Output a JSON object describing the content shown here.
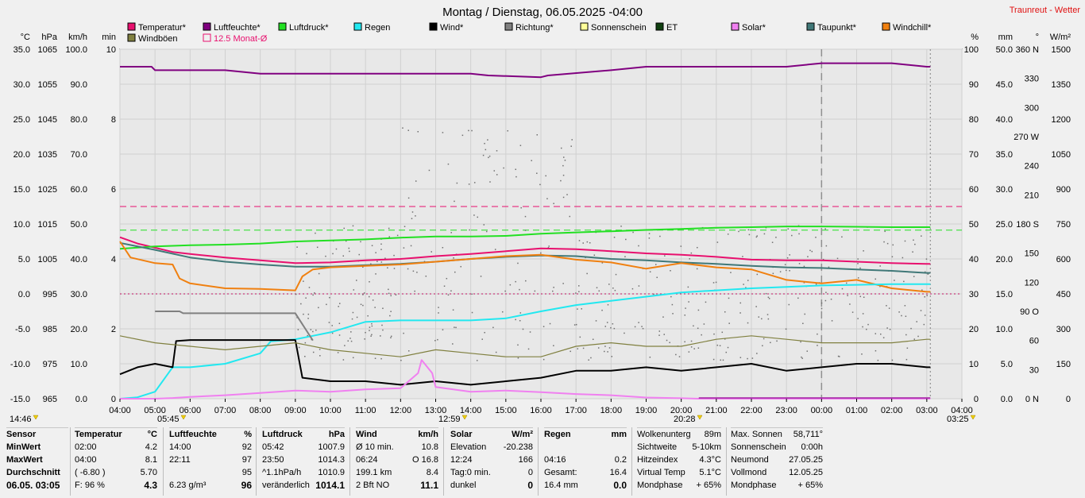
{
  "chart_data": {
    "type": "line",
    "title": "Montag / Dienstag, 06.05.2025  -04:00",
    "brand": "Traunreut - Wetter",
    "x_ticks": [
      "04:00",
      "05:00",
      "06:00",
      "07:00",
      "08:00",
      "09:00",
      "10:00",
      "11:00",
      "12:00",
      "13:00",
      "14:00",
      "15:00",
      "16:00",
      "17:00",
      "18:00",
      "19:00",
      "20:00",
      "21:00",
      "22:00",
      "23:00",
      "00:00",
      "01:00",
      "02:00",
      "03:00",
      "04:00"
    ],
    "xlim_hours": [
      0,
      24
    ],
    "below_axis_markers": [
      {
        "label": "14:46"
      },
      {
        "label": "05:45"
      },
      {
        "label": "12:59"
      },
      {
        "label": "20:28"
      },
      {
        "label": "03:25"
      }
    ],
    "axes": {
      "temperature": {
        "unit": "°C",
        "ticks": [
          "35.0",
          "30.0",
          "25.0",
          "20.0",
          "15.0",
          "10.0",
          "5.0",
          "0.0",
          "-5.0",
          "-10.0",
          "-15.0"
        ],
        "range": [
          -15,
          35
        ]
      },
      "pressure": {
        "unit": "hPa",
        "ticks": [
          "1065",
          "1055",
          "1045",
          "1035",
          "1025",
          "1015",
          "1005",
          "995",
          "985",
          "975",
          "965"
        ],
        "range": [
          965,
          1065
        ]
      },
      "wind": {
        "unit": "km/h",
        "ticks": [
          "100.0",
          "90.0",
          "80.0",
          "70.0",
          "60.0",
          "50.0",
          "40.0",
          "30.0",
          "20.0",
          "10.0",
          "0.0"
        ],
        "range": [
          0,
          100
        ]
      },
      "sunshine": {
        "unit": "min",
        "ticks": [
          "10",
          "8",
          "6",
          "4",
          "2",
          "0"
        ],
        "range": [
          0,
          10
        ]
      },
      "humidity": {
        "unit": "%",
        "ticks": [
          "100",
          "90",
          "80",
          "70",
          "60",
          "50",
          "40",
          "30",
          "20",
          "10",
          "0"
        ],
        "range": [
          0,
          100
        ]
      },
      "rain": {
        "unit": "mm",
        "ticks": [
          "50.0",
          "45.0",
          "40.0",
          "35.0",
          "30.0",
          "25.0",
          "20.0",
          "15.0",
          "10.0",
          "5.0",
          "0.0"
        ],
        "range": [
          0,
          50
        ]
      },
      "direction": {
        "unit": "°",
        "ticks": [
          "360 N",
          "330",
          "300",
          "270 W",
          "240",
          "210",
          "180 S",
          "150",
          "120",
          "90  O",
          "60",
          "30",
          "0    N"
        ],
        "range": [
          0,
          360
        ]
      },
      "solar": {
        "unit": "W/m²",
        "ticks": [
          "1500",
          "1350",
          "1200",
          "1050",
          "900",
          "750",
          "600",
          "450",
          "300",
          "150",
          "0"
        ],
        "range": [
          0,
          1500
        ]
      }
    },
    "legend": [
      {
        "name": "Temperatur*",
        "color": "#e8106e"
      },
      {
        "name": "Luftfeuchte*",
        "color": "#800080"
      },
      {
        "name": "Luftdruck*",
        "color": "#22e022"
      },
      {
        "name": "Regen",
        "color": "#22e8f0"
      },
      {
        "name": "Wind*",
        "color": "#000000"
      },
      {
        "name": "Richtung*",
        "color": "#808080"
      },
      {
        "name": "Sonnenschein",
        "color": "#ffff99"
      },
      {
        "name": "ET",
        "color": "#104010"
      },
      {
        "name": "Solar*",
        "color": "#f080f0"
      },
      {
        "name": "Taupunkt*",
        "color": "#407878"
      },
      {
        "name": "Windchill*",
        "color": "#f08010"
      },
      {
        "name": "Windböen",
        "color": "#808040"
      },
      {
        "name": "12.5 Monat-Ø",
        "color": "#e8106e",
        "hollow": true
      }
    ],
    "series": [
      {
        "name": "Temperatur*",
        "axis": "temperature",
        "color": "#e8106e",
        "x": [
          0,
          0.5,
          1,
          1.5,
          2,
          3,
          4,
          5,
          6,
          7,
          8,
          9,
          10,
          11,
          12,
          13,
          14,
          15,
          16,
          17,
          18,
          19,
          20,
          21,
          22,
          23,
          23.1
        ],
        "y": [
          8.1,
          7.2,
          6.6,
          6.0,
          5.7,
          5.2,
          4.8,
          4.4,
          4.5,
          4.8,
          5.0,
          5.4,
          5.7,
          6.1,
          6.5,
          6.4,
          6.1,
          5.8,
          5.6,
          5.3,
          4.9,
          4.8,
          4.8,
          4.6,
          4.4,
          4.3,
          4.3
        ]
      },
      {
        "name": "Luftfeuchte*",
        "axis": "humidity",
        "color": "#800080",
        "x": [
          0,
          0.9,
          1,
          3,
          4,
          8,
          9,
          10,
          10.5,
          12,
          12.2,
          14,
          15,
          16,
          17,
          18,
          19,
          20,
          21,
          22,
          23,
          23.1
        ],
        "y": [
          95,
          95,
          94,
          94,
          93,
          93,
          93,
          93,
          92.5,
          92,
          92.5,
          94,
          95,
          95,
          95,
          95,
          95,
          96,
          96,
          96,
          95,
          95
        ]
      },
      {
        "name": "Luftdruck*",
        "axis": "pressure",
        "color": "#22e022",
        "x": [
          0,
          1,
          2,
          3,
          4,
          5,
          6,
          7,
          8,
          9,
          10,
          11,
          12,
          13,
          14,
          15,
          16,
          17,
          18,
          19,
          20,
          21,
          22,
          23,
          23.1
        ],
        "y": [
          1007.9,
          1008.6,
          1008.9,
          1009.1,
          1009.4,
          1010.0,
          1010.3,
          1010.6,
          1011.1,
          1011.4,
          1011.4,
          1011.6,
          1012.2,
          1012.6,
          1012.9,
          1013.3,
          1013.6,
          1013.9,
          1014.1,
          1014.3,
          1014.3,
          1014.2,
          1014.1,
          1014.1,
          1014.1
        ]
      },
      {
        "name": "Taupunkt*",
        "axis": "temperature",
        "color": "#407878",
        "x": [
          0,
          1,
          2,
          3,
          4,
          5,
          6,
          7,
          8,
          9,
          10,
          11,
          12,
          13,
          14,
          15,
          16,
          17,
          18,
          19,
          20,
          21,
          22,
          23,
          23.1
        ],
        "y": [
          7.3,
          6.3,
          5.2,
          4.6,
          4.2,
          3.9,
          3.9,
          4.1,
          4.3,
          4.6,
          5.0,
          5.3,
          5.5,
          5.4,
          5.0,
          4.8,
          4.5,
          4.3,
          4.0,
          3.8,
          3.7,
          3.5,
          3.3,
          3.0,
          3.0
        ]
      },
      {
        "name": "Windchill*",
        "axis": "temperature",
        "color": "#f08010",
        "x": [
          0,
          0.3,
          1,
          1.5,
          1.7,
          2,
          3,
          4,
          5,
          5.2,
          5.5,
          6,
          7,
          8,
          9,
          10,
          11,
          12,
          13,
          14,
          15,
          16,
          17,
          18,
          19,
          20,
          21,
          22,
          23,
          23.1
        ],
        "y": [
          7.5,
          5.2,
          4.4,
          4.2,
          2.2,
          1.5,
          0.8,
          0.7,
          0.5,
          2.5,
          3.5,
          3.8,
          4.0,
          4.2,
          4.6,
          5.0,
          5.4,
          5.6,
          4.9,
          4.5,
          3.6,
          4.4,
          3.8,
          3.5,
          2.0,
          1.5,
          2.0,
          0.8,
          0.3,
          0.3
        ]
      },
      {
        "name": "Regen",
        "axis": "rain",
        "color": "#22e8f0",
        "x": [
          0,
          0.5,
          1,
          1.5,
          2,
          3,
          4,
          4.3,
          5,
          5.5,
          6,
          7,
          8,
          9,
          10,
          11,
          12,
          13,
          14,
          15,
          16,
          17,
          18,
          19,
          20,
          21,
          22,
          23,
          23.1
        ],
        "y": [
          0,
          0.2,
          1.0,
          4.5,
          4.5,
          5.0,
          6.5,
          8.2,
          8.5,
          9.0,
          9.5,
          11.0,
          11.2,
          11.2,
          11.2,
          11.5,
          12.5,
          13.4,
          14.0,
          14.6,
          15.2,
          15.5,
          15.8,
          16.0,
          16.2,
          16.3,
          16.4,
          16.4,
          16.4
        ]
      },
      {
        "name": "Wind*",
        "axis": "wind",
        "color": "#000000",
        "x": [
          0,
          0.5,
          1,
          1.5,
          1.6,
          2,
          3,
          4,
          5,
          5.2,
          6,
          7,
          8,
          9,
          10,
          11,
          12,
          13,
          14,
          15,
          16,
          17,
          18,
          19,
          20,
          21,
          22,
          23,
          23.1
        ],
        "y": [
          7,
          9,
          10,
          9,
          16.5,
          16.8,
          16.8,
          16.8,
          16.8,
          6,
          5,
          5,
          4,
          5,
          4,
          5,
          6,
          8,
          8,
          9,
          8,
          9,
          10,
          8,
          9,
          10,
          10,
          9,
          9
        ]
      },
      {
        "name": "Windböen",
        "axis": "wind",
        "color": "#808040",
        "x": [
          0,
          1,
          2,
          3,
          4,
          5,
          6,
          7,
          8,
          9,
          10,
          11,
          12,
          13,
          14,
          15,
          16,
          17,
          18,
          19,
          20,
          21,
          22,
          23,
          23.1
        ],
        "y": [
          18,
          16,
          15,
          14,
          15,
          16,
          14,
          13,
          12,
          14,
          13,
          12,
          12,
          15,
          16,
          15,
          15,
          17,
          18,
          17,
          16,
          16,
          16,
          17,
          17
        ]
      },
      {
        "name": "Richtung*",
        "axis": "direction",
        "color": "#808080",
        "x": [
          1,
          1.7,
          1.8,
          2.5,
          3,
          4,
          5,
          5.5
        ],
        "y": [
          90,
          90,
          88,
          88,
          88,
          88,
          88,
          60
        ]
      },
      {
        "name": "Solar*",
        "axis": "solar",
        "color": "#f080f0",
        "x": [
          0,
          1,
          1.5,
          2,
          3,
          4,
          5,
          6,
          7,
          8,
          8.5,
          8.6,
          8.9,
          9,
          10,
          11,
          12,
          13,
          14,
          15,
          16,
          16.5,
          17,
          18,
          19,
          20,
          21,
          22,
          23,
          23.1
        ],
        "y": [
          0,
          0,
          3,
          8,
          15,
          25,
          35,
          30,
          40,
          45,
          110,
          166,
          110,
          50,
          30,
          35,
          28,
          20,
          15,
          5,
          2,
          0,
          0,
          0,
          0,
          0,
          0,
          0,
          0,
          0
        ]
      }
    ],
    "reference_lines": [
      {
        "name": "12.5 Monat-Ø",
        "axis": "temperature",
        "value": 12.5,
        "color": "#e8106e",
        "style": "dashed"
      },
      {
        "name": "Luftdruck ref",
        "axis": "pressure",
        "value": 1013.25,
        "color": "#22e022",
        "style": "dashed"
      },
      {
        "name": "Frost",
        "axis": "temperature",
        "value": 0,
        "color": "#c01060",
        "style": "dotted"
      }
    ],
    "midnight_marker_hour": 20
  },
  "stats": {
    "sensor": {
      "header": "Sensor",
      "rows": [
        "MinWert",
        "MaxWert",
        "Durchschnitt"
      ],
      "footer": "06.05. 03:05"
    },
    "temperature": {
      "header": "Temperatur",
      "unit": "°C",
      "rows": [
        [
          "02:00",
          "4.2"
        ],
        [
          "04:00",
          "8.1"
        ],
        [
          "( -6.80 )",
          "5.70"
        ]
      ],
      "footer": [
        "F: 96 %",
        "4.3"
      ]
    },
    "humidity": {
      "header": "Luftfeuchte",
      "unit": "%",
      "rows": [
        [
          "14:00",
          "92"
        ],
        [
          "22:11",
          "97"
        ],
        [
          "",
          "95"
        ]
      ],
      "footer": [
        "6.23 g/m³",
        "96"
      ]
    },
    "pressure": {
      "header": "Luftdruck",
      "unit": "hPa",
      "rows": [
        [
          "05:42",
          "1007.9"
        ],
        [
          "23:50",
          "1014.3"
        ],
        [
          "^1.1hPa/h",
          "1010.9"
        ]
      ],
      "footer": [
        "veränderlich",
        "1014.1"
      ]
    },
    "wind": {
      "header": "Wind",
      "unit": "km/h",
      "rows": [
        [
          "Ø 10 min.",
          "10.8"
        ],
        [
          "06:24",
          "O 16.8"
        ],
        [
          "199.1 km",
          "8.4"
        ]
      ],
      "footer": [
        "2 Bft NO",
        "11.1"
      ]
    },
    "solar": {
      "header": "Solar",
      "unit": "W/m²",
      "rows": [
        [
          "Elevation",
          "-20.238"
        ],
        [
          "12:24",
          "166"
        ],
        [
          "Tag:0 min.",
          "0"
        ]
      ],
      "footer": [
        "dunkel",
        "0"
      ]
    },
    "rain": {
      "header": "Regen",
      "unit": "mm",
      "rows": [
        [
          "",
          ""
        ],
        [
          "04:16",
          "0.2"
        ],
        [
          "Gesamt:",
          "16.4"
        ]
      ],
      "footer": [
        "16.4 mm",
        "0.0"
      ]
    },
    "misc1": [
      [
        "Wolkenunterg",
        "89m"
      ],
      [
        "Sichtweite",
        "5-10km"
      ],
      [
        "Hitzeindex",
        "4.3°C"
      ],
      [
        "Virtual Temp",
        "5.1°C"
      ],
      [
        "Mondphase",
        "+ 65%"
      ]
    ],
    "misc2": [
      [
        "Max. Sonnen",
        "58,711°"
      ],
      [
        "Sonnenschein",
        "0:00h"
      ],
      [
        "Neumond",
        "27.05.25"
      ],
      [
        "Vollmond",
        "12.05.25"
      ],
      [
        "Mondphase",
        "+ 65%"
      ]
    ]
  }
}
